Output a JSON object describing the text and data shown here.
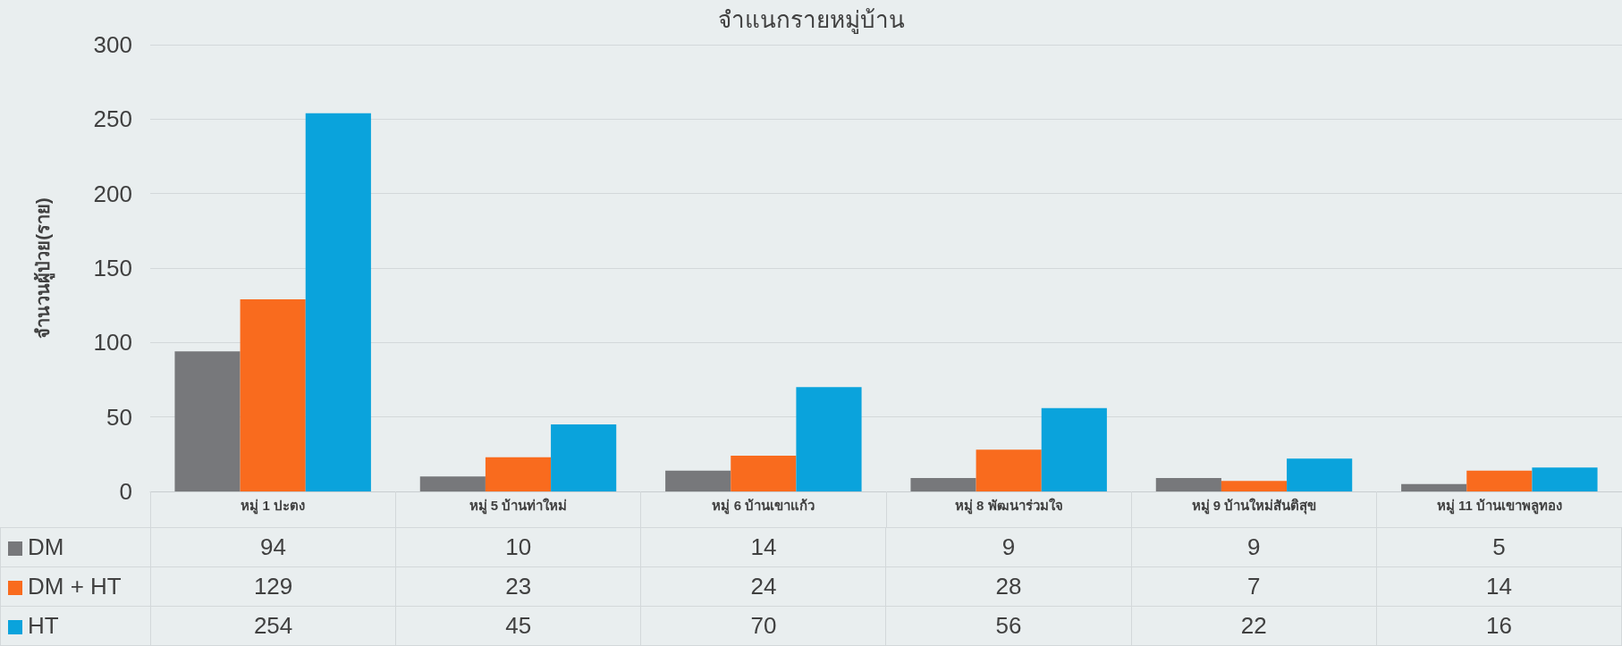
{
  "chart_data": {
    "type": "bar",
    "title": "จำแนกรายหมู่บ้าน",
    "ylabel": "จำนวนผู้ป่วย(ราย)",
    "categories": [
      "หมู่ 1 ปะตง",
      "หมู่ 5 บ้านท่าใหม่",
      "หมู่ 6 บ้านเขาแก้ว",
      "หมู่ 8 พัฒนาร่วมใจ",
      "หมู่ 9 บ้านใหม่สันติสุข",
      "หมู่ 11 บ้านเขาพลูทอง"
    ],
    "series": [
      {
        "name": "DM",
        "color": "#77787b",
        "values": [
          94,
          10,
          14,
          9,
          9,
          5
        ]
      },
      {
        "name": "DM + HT",
        "color": "#f96b1e",
        "values": [
          129,
          23,
          24,
          28,
          7,
          14
        ]
      },
      {
        "name": "HT",
        "color": "#0aa3dc",
        "values": [
          254,
          45,
          70,
          56,
          22,
          16
        ]
      }
    ],
    "ylim": [
      0,
      300
    ],
    "yticks": [
      0,
      50,
      100,
      150,
      200,
      250,
      300
    ],
    "grid": "y",
    "legend": "bottom",
    "data_labels": true
  }
}
